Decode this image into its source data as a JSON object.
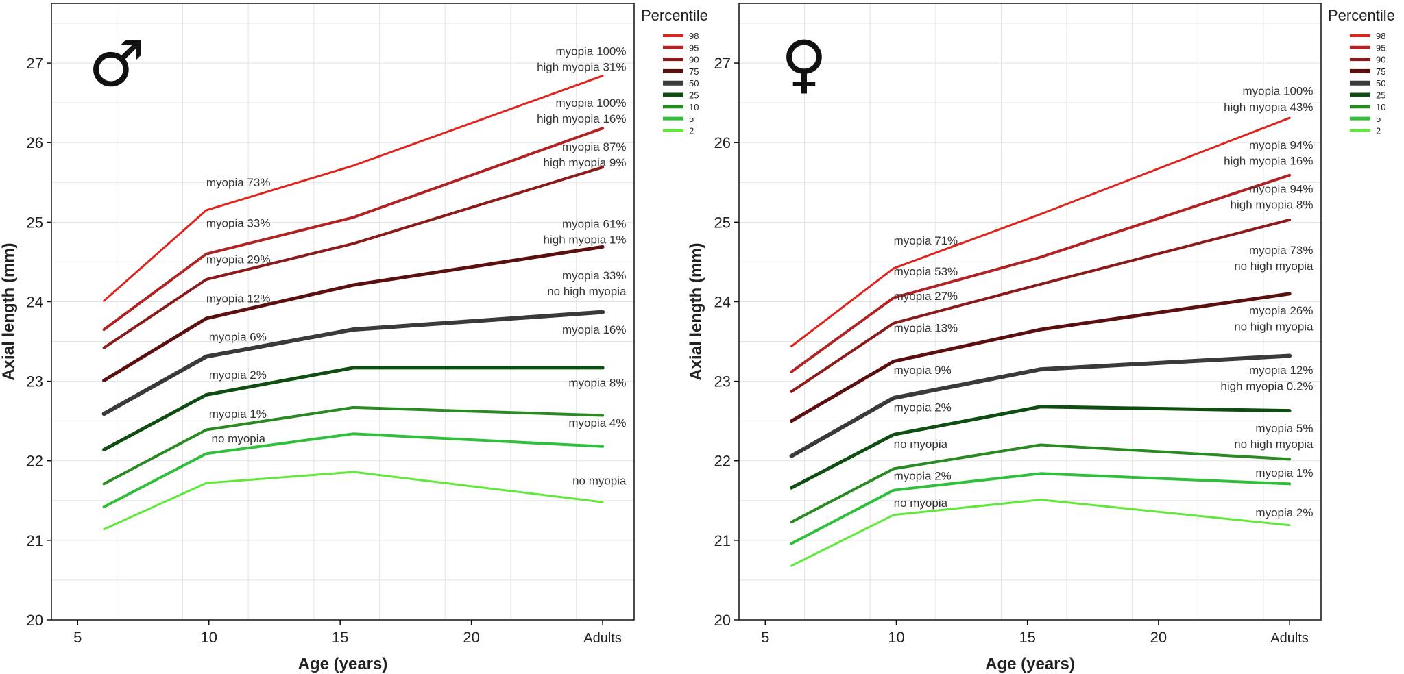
{
  "chart_data": [
    {
      "type": "line",
      "sex_symbol": "♂",
      "xlabel": "Age (years)",
      "ylabel": "Axial length (mm)",
      "xlim": [
        4,
        26.2
      ],
      "ylim": [
        20,
        27.75
      ],
      "x_ticks": [
        {
          "value": 5,
          "label": "5"
        },
        {
          "value": 10,
          "label": "10"
        },
        {
          "value": 15,
          "label": "15"
        },
        {
          "value": 20,
          "label": "20"
        },
        {
          "value": 25,
          "label": "Adults"
        }
      ],
      "y_ticks": [
        20,
        21,
        22,
        23,
        24,
        25,
        26,
        27
      ],
      "grid": true,
      "legend": {
        "title": "Percentile",
        "placement": "right"
      },
      "x": [
        6,
        9.9,
        15.5,
        25
      ],
      "series": [
        {
          "name": "98",
          "color": "#e0231c",
          "width": 3,
          "values": [
            24.01,
            25.15,
            25.71,
            26.84
          ]
        },
        {
          "name": "95",
          "color": "#b22222",
          "width": 4,
          "values": [
            23.65,
            24.6,
            25.06,
            26.18
          ]
        },
        {
          "name": "90",
          "color": "#8b1a1a",
          "width": 4,
          "values": [
            23.42,
            24.28,
            24.73,
            25.69
          ]
        },
        {
          "name": "75",
          "color": "#5c0f0f",
          "width": 5,
          "values": [
            23.01,
            23.79,
            24.21,
            24.69
          ]
        },
        {
          "name": "50",
          "color": "#3a3a3c",
          "width": 6,
          "values": [
            22.59,
            23.31,
            23.65,
            23.87
          ]
        },
        {
          "name": "25",
          "color": "#0f4d12",
          "width": 5,
          "values": [
            22.14,
            22.83,
            23.17,
            23.17
          ]
        },
        {
          "name": "10",
          "color": "#2a8a22",
          "width": 4,
          "values": [
            21.71,
            22.39,
            22.67,
            22.57
          ]
        },
        {
          "name": "5",
          "color": "#2fbf3a",
          "width": 4,
          "values": [
            21.42,
            22.09,
            22.34,
            22.18
          ]
        },
        {
          "name": "2",
          "color": "#5fea3a",
          "width": 3,
          "values": [
            21.14,
            21.72,
            21.86,
            21.48
          ]
        }
      ],
      "annotations": [
        {
          "x": 9.9,
          "y": 25.45,
          "text": "myopia 73%",
          "align": "start"
        },
        {
          "x": 9.9,
          "y": 24.94,
          "text": "myopia 33%",
          "align": "start"
        },
        {
          "x": 9.9,
          "y": 24.48,
          "text": "myopia 29%",
          "align": "start"
        },
        {
          "x": 9.9,
          "y": 23.99,
          "text": "myopia 12%",
          "align": "start"
        },
        {
          "x": 10,
          "y": 23.51,
          "text": "myopia 6%",
          "align": "start"
        },
        {
          "x": 10,
          "y": 23.03,
          "text": "myopia 2%",
          "align": "start"
        },
        {
          "x": 10,
          "y": 22.54,
          "text": "myopia 1%",
          "align": "start"
        },
        {
          "x": 10.1,
          "y": 22.23,
          "text": "no myopia",
          "align": "start"
        },
        {
          "x": 25.9,
          "y": 27.1,
          "text": "myopia 100%",
          "align": "end"
        },
        {
          "x": 25.9,
          "y": 26.9,
          "text": "high myopia 31%",
          "align": "end"
        },
        {
          "x": 25.9,
          "y": 26.45,
          "text": "myopia 100%",
          "align": "end"
        },
        {
          "x": 25.9,
          "y": 26.25,
          "text": "high myopia 16%",
          "align": "end"
        },
        {
          "x": 25.9,
          "y": 25.9,
          "text": "myopia 87%",
          "align": "end"
        },
        {
          "x": 25.9,
          "y": 25.7,
          "text": "high myopia 9%",
          "align": "end"
        },
        {
          "x": 25.9,
          "y": 24.93,
          "text": "myopia 61%",
          "align": "end"
        },
        {
          "x": 25.9,
          "y": 24.73,
          "text": "high myopia 1%",
          "align": "end"
        },
        {
          "x": 25.9,
          "y": 24.28,
          "text": "myopia 33%",
          "align": "end"
        },
        {
          "x": 25.9,
          "y": 24.08,
          "text": "no high myopia",
          "align": "end"
        },
        {
          "x": 25.9,
          "y": 23.6,
          "text": "myopia 16%",
          "align": "end"
        },
        {
          "x": 25.9,
          "y": 22.93,
          "text": "myopia 8%",
          "align": "end"
        },
        {
          "x": 25.9,
          "y": 22.43,
          "text": "myopia 4%",
          "align": "end"
        },
        {
          "x": 25.9,
          "y": 21.7,
          "text": "no myopia",
          "align": "end"
        }
      ]
    },
    {
      "type": "line",
      "sex_symbol": "♀",
      "xlabel": "Age (years)",
      "ylabel": "Axial length (mm)",
      "xlim": [
        4,
        26.2
      ],
      "ylim": [
        20,
        27.75
      ],
      "x_ticks": [
        {
          "value": 5,
          "label": "5"
        },
        {
          "value": 10,
          "label": "10"
        },
        {
          "value": 15,
          "label": "15"
        },
        {
          "value": 20,
          "label": "20"
        },
        {
          "value": 25,
          "label": "Adults"
        }
      ],
      "y_ticks": [
        20,
        21,
        22,
        23,
        24,
        25,
        26,
        27
      ],
      "grid": true,
      "legend": {
        "title": "Percentile",
        "placement": "right"
      },
      "x": [
        6,
        9.9,
        15.5,
        25
      ],
      "series": [
        {
          "name": "98",
          "color": "#e0231c",
          "width": 3,
          "values": [
            23.44,
            24.42,
            25.1,
            26.31
          ]
        },
        {
          "name": "95",
          "color": "#b22222",
          "width": 4,
          "values": [
            23.12,
            24.05,
            24.56,
            25.59
          ]
        },
        {
          "name": "90",
          "color": "#8b1a1a",
          "width": 4,
          "values": [
            22.87,
            23.73,
            24.22,
            25.03
          ]
        },
        {
          "name": "75",
          "color": "#5c0f0f",
          "width": 5,
          "values": [
            22.5,
            23.25,
            23.65,
            24.1
          ]
        },
        {
          "name": "50",
          "color": "#3a3a3c",
          "width": 6,
          "values": [
            22.06,
            22.79,
            23.15,
            23.32
          ]
        },
        {
          "name": "25",
          "color": "#0f4d12",
          "width": 5,
          "values": [
            21.66,
            22.33,
            22.68,
            22.63
          ]
        },
        {
          "name": "10",
          "color": "#2a8a22",
          "width": 4,
          "values": [
            21.23,
            21.9,
            22.2,
            22.02
          ]
        },
        {
          "name": "5",
          "color": "#2fbf3a",
          "width": 4,
          "values": [
            20.96,
            21.63,
            21.84,
            21.71
          ]
        },
        {
          "name": "2",
          "color": "#5fea3a",
          "width": 3,
          "values": [
            20.68,
            21.32,
            21.51,
            21.19
          ]
        }
      ],
      "annotations": [
        {
          "x": 9.9,
          "y": 24.72,
          "text": "myopia 71%",
          "align": "start"
        },
        {
          "x": 9.9,
          "y": 24.33,
          "text": "myopia 53%",
          "align": "start"
        },
        {
          "x": 9.9,
          "y": 24.02,
          "text": "myopia 27%",
          "align": "start"
        },
        {
          "x": 9.9,
          "y": 23.62,
          "text": "myopia 13%",
          "align": "start"
        },
        {
          "x": 9.9,
          "y": 23.09,
          "text": "myopia 9%",
          "align": "start"
        },
        {
          "x": 9.9,
          "y": 22.62,
          "text": "myopia 2%",
          "align": "start"
        },
        {
          "x": 9.9,
          "y": 22.16,
          "text": "no myopia",
          "align": "start"
        },
        {
          "x": 9.9,
          "y": 21.76,
          "text": "myopia 2%",
          "align": "start"
        },
        {
          "x": 9.9,
          "y": 21.42,
          "text": "no myopia",
          "align": "start"
        },
        {
          "x": 25.9,
          "y": 26.6,
          "text": "myopia 100%",
          "align": "end"
        },
        {
          "x": 25.9,
          "y": 26.4,
          "text": "high myopia 43%",
          "align": "end"
        },
        {
          "x": 25.9,
          "y": 25.92,
          "text": "myopia 94%",
          "align": "end"
        },
        {
          "x": 25.9,
          "y": 25.72,
          "text": "high myopia 16%",
          "align": "end"
        },
        {
          "x": 25.9,
          "y": 25.37,
          "text": "myopia 94%",
          "align": "end"
        },
        {
          "x": 25.9,
          "y": 25.17,
          "text": "high myopia 8%",
          "align": "end"
        },
        {
          "x": 25.9,
          "y": 24.6,
          "text": "myopia 73%",
          "align": "end"
        },
        {
          "x": 25.9,
          "y": 24.4,
          "text": "no high myopia",
          "align": "end"
        },
        {
          "x": 25.9,
          "y": 23.84,
          "text": "myopia 26%",
          "align": "end"
        },
        {
          "x": 25.9,
          "y": 23.64,
          "text": "no high myopia",
          "align": "end"
        },
        {
          "x": 25.9,
          "y": 23.09,
          "text": "myopia 12%",
          "align": "end"
        },
        {
          "x": 25.9,
          "y": 22.89,
          "text": "high myopia 0.2%",
          "align": "end"
        },
        {
          "x": 25.9,
          "y": 22.36,
          "text": "myopia 5%",
          "align": "end"
        },
        {
          "x": 25.9,
          "y": 22.16,
          "text": "no high myopia",
          "align": "end"
        },
        {
          "x": 25.9,
          "y": 21.8,
          "text": "myopia 1%",
          "align": "end"
        },
        {
          "x": 25.9,
          "y": 21.3,
          "text": "myopia 2%",
          "align": "end"
        }
      ]
    }
  ]
}
